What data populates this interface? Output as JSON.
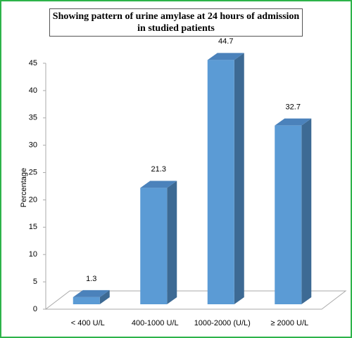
{
  "chart_data": {
    "type": "bar3d",
    "title": "Showing pattern of urine amylase at 24 hours of admission in studied patients",
    "y_label": "Percentage",
    "categories": [
      "< 400 U/L",
      "400-1000 U/L",
      "1000-2000 (U/L)",
      "≥ 2000 U/L"
    ],
    "values": [
      1.3,
      21.3,
      44.7,
      32.7
    ],
    "color": "#5b9bd5",
    "ylim": [
      0,
      45
    ],
    "yticks": [
      0,
      5,
      10,
      15,
      20,
      25,
      30,
      35,
      40,
      45
    ]
  }
}
